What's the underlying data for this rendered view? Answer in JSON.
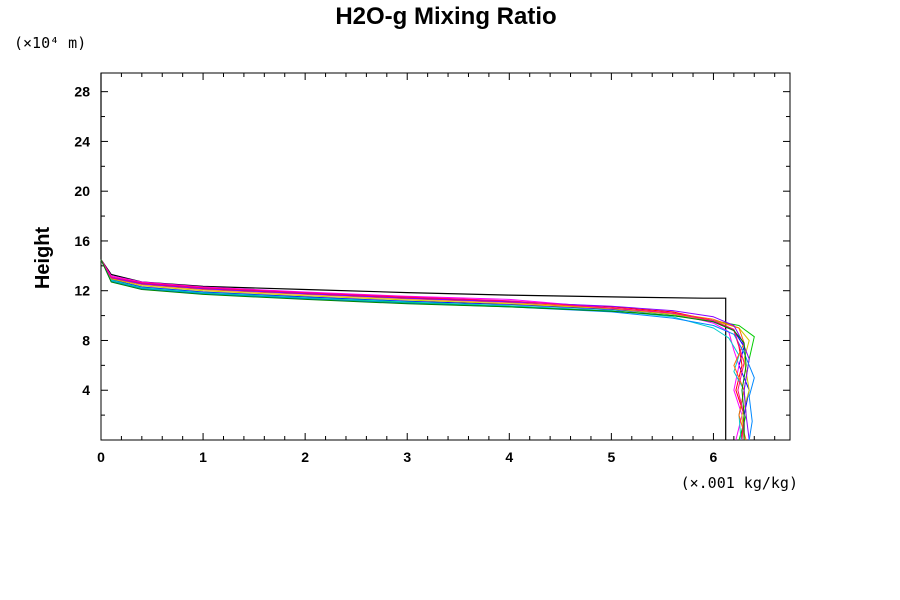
{
  "chart_data": {
    "type": "line",
    "title": "H2O-g Mixing Ratio",
    "ylabel": "Height",
    "y_unit": "(×10⁴ m)",
    "x_unit": "(×.001 kg/kg)",
    "xlim": [
      0,
      6.75
    ],
    "ylim": [
      0,
      29.5
    ],
    "x_ticks": [
      "0",
      "1",
      "2",
      "3",
      "4",
      "5",
      "6"
    ],
    "y_ticks": [
      "4",
      "8",
      "12",
      "16",
      "20",
      "24",
      "28"
    ],
    "grid": false,
    "reference_profile": {
      "color": "#000000",
      "x": [
        0.0,
        0.0,
        0.1,
        0.4,
        1.0,
        2.0,
        3.0,
        4.0,
        5.0,
        5.9,
        6.12,
        6.12
      ],
      "y": [
        29.5,
        14.5,
        13.3,
        12.7,
        12.35,
        12.1,
        11.85,
        11.65,
        11.5,
        11.4,
        11.4,
        0.0
      ]
    },
    "series": [
      {
        "color": "#0000ff",
        "x": [
          0.0,
          0.1,
          0.4,
          1.0,
          2.0,
          3.0,
          4.0,
          5.0,
          5.6,
          6.0,
          6.2,
          6.3,
          6.25,
          6.35,
          6.3,
          6.3
        ],
        "y": [
          14.5,
          12.9,
          12.3,
          11.9,
          11.5,
          11.15,
          10.9,
          10.5,
          10.1,
          9.5,
          8.8,
          7.5,
          6.0,
          4.0,
          2.0,
          0.0
        ]
      },
      {
        "color": "#ff0000",
        "x": [
          0.0,
          0.1,
          0.4,
          1.0,
          2.0,
          3.0,
          4.0,
          5.0,
          5.6,
          6.0,
          6.2,
          6.25,
          6.28,
          6.22,
          6.3,
          6.27
        ],
        "y": [
          14.5,
          13.1,
          12.6,
          12.2,
          11.8,
          11.45,
          11.15,
          10.7,
          10.3,
          9.6,
          8.8,
          7.5,
          6.0,
          4.0,
          2.0,
          0.0
        ]
      },
      {
        "color": "#00cc00",
        "x": [
          0.0,
          0.1,
          0.4,
          1.0,
          2.0,
          3.0,
          4.0,
          5.0,
          5.6,
          6.0,
          6.25,
          6.4,
          6.35,
          6.3,
          6.32,
          6.25
        ],
        "y": [
          14.5,
          12.8,
          12.2,
          11.8,
          11.4,
          11.05,
          10.75,
          10.4,
          10.0,
          9.6,
          9.2,
          8.3,
          6.5,
          4.0,
          2.0,
          0.0
        ]
      },
      {
        "color": "#ff00ff",
        "x": [
          0.0,
          0.1,
          0.4,
          1.0,
          2.0,
          3.0,
          4.0,
          5.0,
          5.6,
          6.0,
          6.15,
          6.2,
          6.25,
          6.2,
          6.28,
          6.22
        ],
        "y": [
          14.5,
          13.2,
          12.7,
          12.3,
          11.9,
          11.55,
          11.3,
          10.6,
          10.2,
          9.4,
          8.7,
          7.2,
          6.0,
          4.0,
          2.0,
          0.0
        ]
      },
      {
        "color": "#00cccc",
        "x": [
          0.0,
          0.1,
          0.4,
          1.0,
          2.0,
          3.0,
          4.0,
          5.0,
          5.6,
          6.0,
          6.15,
          6.25,
          6.2,
          6.3,
          6.25,
          6.27
        ],
        "y": [
          14.5,
          12.85,
          12.25,
          11.85,
          11.45,
          11.1,
          10.8,
          10.4,
          9.9,
          9.0,
          8.2,
          6.8,
          5.5,
          4.0,
          2.0,
          0.0
        ]
      },
      {
        "color": "#cccc00",
        "x": [
          0.0,
          0.1,
          0.4,
          1.0,
          2.0,
          3.0,
          4.0,
          5.0,
          5.6,
          6.0,
          6.25,
          6.35,
          6.3,
          6.35,
          6.28,
          6.3
        ],
        "y": [
          14.5,
          12.95,
          12.4,
          12.0,
          11.6,
          11.25,
          10.95,
          10.55,
          10.1,
          9.6,
          9.0,
          8.0,
          6.5,
          4.0,
          2.0,
          0.0
        ]
      },
      {
        "color": "#ff6600",
        "x": [
          0.0,
          0.1,
          0.4,
          1.0,
          2.0,
          3.0,
          4.0,
          5.0,
          5.6,
          6.0,
          6.25,
          6.3,
          6.2,
          6.3,
          6.25,
          6.32
        ],
        "y": [
          14.5,
          13.0,
          12.5,
          12.1,
          11.7,
          11.35,
          11.05,
          10.6,
          10.2,
          9.7,
          9.0,
          7.8,
          6.0,
          4.0,
          2.0,
          0.0
        ]
      },
      {
        "color": "#8800ff",
        "x": [
          0.0,
          0.1,
          0.4,
          1.0,
          2.0,
          3.0,
          4.0,
          5.0,
          5.6,
          6.0,
          6.2,
          6.28,
          6.35,
          6.3,
          6.32,
          6.35
        ],
        "y": [
          14.5,
          13.05,
          12.55,
          12.15,
          11.75,
          11.4,
          11.1,
          10.75,
          10.4,
          9.9,
          9.2,
          8.0,
          6.5,
          4.0,
          2.0,
          0.0
        ]
      },
      {
        "color": "#0088ff",
        "x": [
          0.0,
          0.1,
          0.4,
          1.0,
          2.0,
          3.0,
          4.0,
          5.0,
          5.6,
          6.0,
          6.2,
          6.3,
          6.4,
          6.35,
          6.38,
          6.35
        ],
        "y": [
          14.5,
          12.75,
          12.15,
          11.75,
          11.35,
          11.0,
          10.7,
          10.3,
          9.8,
          9.2,
          8.5,
          7.0,
          5.0,
          3.5,
          1.5,
          0.0
        ]
      },
      {
        "color": "#ff0088",
        "x": [
          0.0,
          0.1,
          0.4,
          1.0,
          2.0,
          3.0,
          4.0,
          5.0,
          5.6,
          6.0,
          6.2,
          6.25,
          6.3,
          6.24,
          6.3,
          6.28
        ],
        "y": [
          14.5,
          13.1,
          12.65,
          12.25,
          11.85,
          11.5,
          11.2,
          10.6,
          10.2,
          9.6,
          8.9,
          7.6,
          6.2,
          4.0,
          2.0,
          0.0
        ]
      },
      {
        "color": "#008800",
        "x": [
          0.0,
          0.1,
          0.4,
          1.0,
          2.0,
          3.0,
          4.0,
          5.0,
          5.6,
          6.0,
          6.2,
          6.3,
          6.32,
          6.28,
          6.3,
          6.3
        ],
        "y": [
          14.5,
          12.7,
          12.1,
          11.7,
          11.3,
          10.95,
          10.7,
          10.35,
          10.0,
          9.5,
          8.8,
          7.8,
          6.0,
          4.0,
          2.0,
          0.0
        ]
      }
    ]
  }
}
